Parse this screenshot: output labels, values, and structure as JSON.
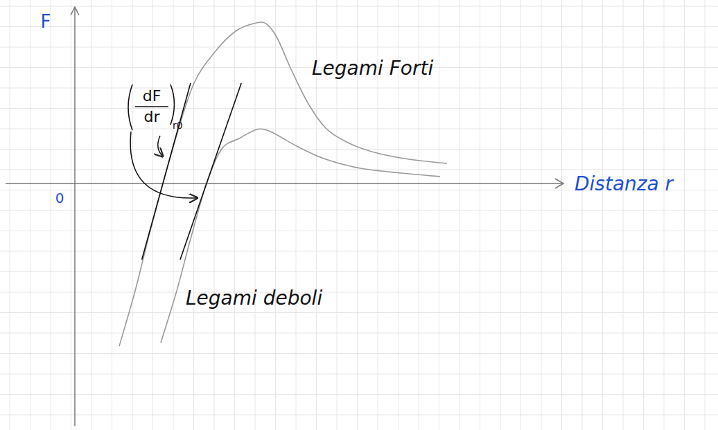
{
  "chart_data": {
    "type": "line",
    "x_label": "Distanza r",
    "y_label": "F",
    "xlim": [
      -2,
      14.1
    ],
    "ylim": [
      -7,
      5.1
    ],
    "xticks": [
      0
    ],
    "yticks": [],
    "tick_labels": "x",
    "series": [
      {
        "name": "Legami Forti",
        "color": "#9a9a9a",
        "x": [
          1.28,
          1.74,
          2.14,
          2.54,
          2.94,
          3.44,
          4.04,
          4.64,
          5.24,
          5.54,
          5.84,
          6.24,
          6.74,
          7.24,
          7.84,
          8.64,
          9.64,
          10.74
        ],
        "values": [
          -4.7,
          -3.1,
          -1.5,
          0,
          1.4,
          2.9,
          3.8,
          4.4,
          4.64,
          4.6,
          4.2,
          3.3,
          2.3,
          1.6,
          1.2,
          0.9,
          0.7,
          0.58
        ]
      },
      {
        "name": "Legami deboli",
        "color": "#9a9a9a",
        "x": [
          2.48,
          2.94,
          3.34,
          3.8,
          4.24,
          4.74,
          5.24,
          5.54,
          5.84,
          6.44,
          7.24,
          8.24,
          9.44,
          10.54
        ],
        "values": [
          -4.6,
          -3.1,
          -1.6,
          0,
          1.0,
          1.3,
          1.56,
          1.54,
          1.4,
          1.06,
          0.7,
          0.44,
          0.3,
          0.2
        ]
      }
    ],
    "slope_annotation": {
      "numerator": "dF",
      "denominator": "dr",
      "subscript": "r0"
    }
  }
}
